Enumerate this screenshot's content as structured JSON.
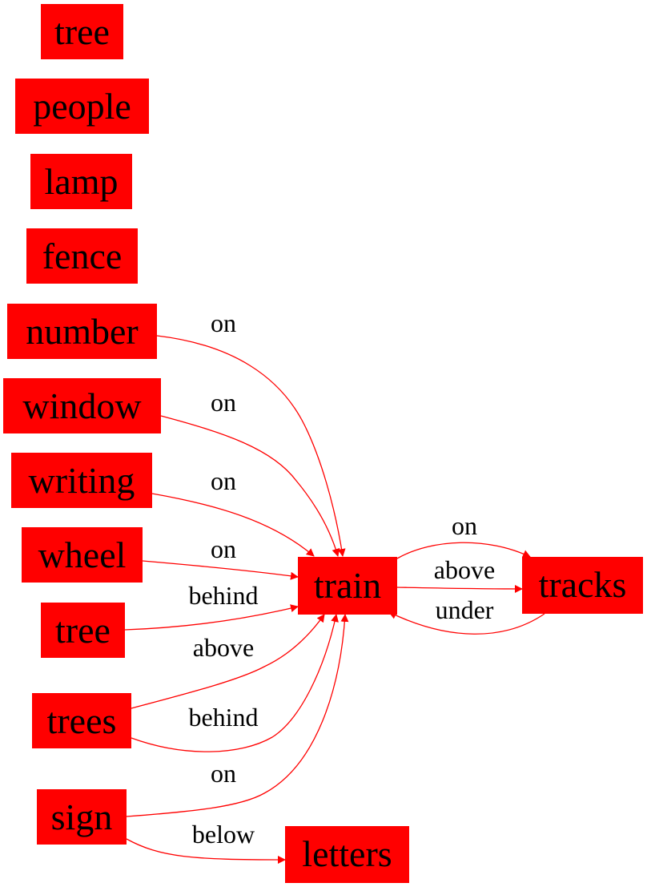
{
  "colors": {
    "node_fill": "#ff0000",
    "edge": "#ff0000",
    "text": "#000000",
    "background": "#ffffff"
  },
  "nodes": {
    "tree_top": "tree",
    "people": "people",
    "lamp": "lamp",
    "fence": "fence",
    "number": "number",
    "window": "window",
    "writing": "writing",
    "wheel": "wheel",
    "tree_mid": "tree",
    "trees": "trees",
    "sign": "sign",
    "train": "train",
    "tracks": "tracks",
    "letters": "letters"
  },
  "edges": [
    {
      "id": "number-train",
      "from": "number",
      "to": "train",
      "label": "on"
    },
    {
      "id": "window-train",
      "from": "window",
      "to": "train",
      "label": "on"
    },
    {
      "id": "writing-train",
      "from": "writing",
      "to": "train",
      "label": "on"
    },
    {
      "id": "wheel-train",
      "from": "wheel",
      "to": "train",
      "label": "on"
    },
    {
      "id": "tree-train",
      "from": "tree",
      "to": "train",
      "label": "behind"
    },
    {
      "id": "trees-train-above",
      "from": "trees",
      "to": "train",
      "label": "above"
    },
    {
      "id": "trees-train-behind",
      "from": "trees",
      "to": "train",
      "label": "behind"
    },
    {
      "id": "sign-train",
      "from": "sign",
      "to": "train",
      "label": "on"
    },
    {
      "id": "sign-letters",
      "from": "sign",
      "to": "letters",
      "label": "below"
    },
    {
      "id": "train-tracks-on",
      "from": "train",
      "to": "tracks",
      "label": "on"
    },
    {
      "id": "train-tracks-above",
      "from": "train",
      "to": "tracks",
      "label": "above"
    },
    {
      "id": "tracks-train-under",
      "from": "tracks",
      "to": "train",
      "label": "under"
    }
  ]
}
